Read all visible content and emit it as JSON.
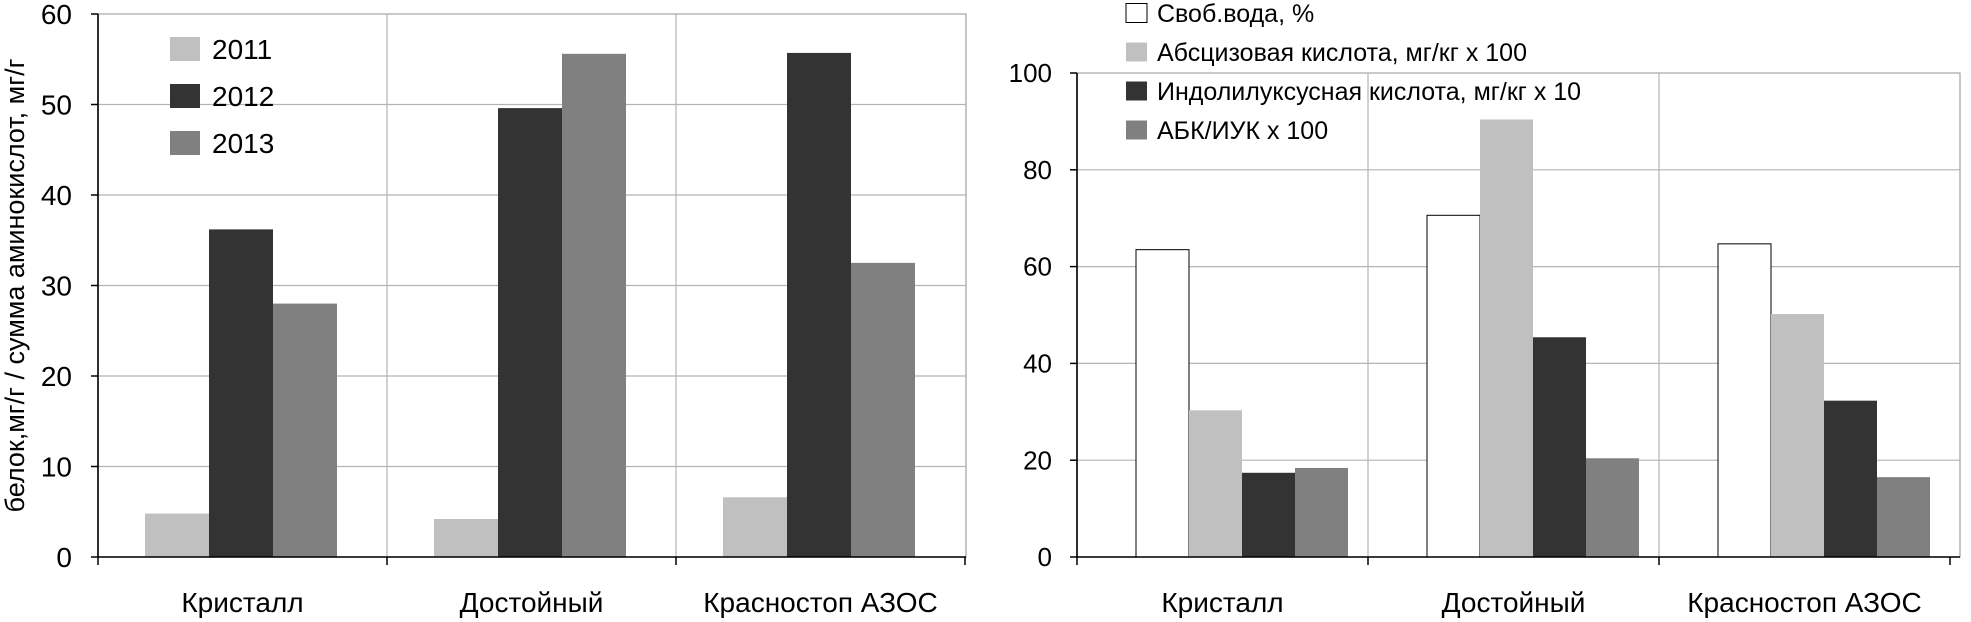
{
  "chart_data": [
    {
      "type": "bar",
      "title": "",
      "xlabel": "",
      "ylabel": "белок,мг/г / сумма аминокислот, мг/г",
      "ylim": [
        0,
        60
      ],
      "yticks": [
        0,
        10,
        20,
        30,
        40,
        50,
        60
      ],
      "grid": true,
      "legend": "top-left",
      "categories": [
        "Кристалл",
        "Достойный",
        "Красностоп АЗОС"
      ],
      "series": [
        {
          "name": "2011",
          "color": "#c0c0c0",
          "values": [
            4.8,
            4.2,
            6.6
          ]
        },
        {
          "name": "2012",
          "color": "#333333",
          "values": [
            36.2,
            49.6,
            55.7
          ]
        },
        {
          "name": "2013",
          "color": "#808080",
          "values": [
            28.0,
            55.6,
            32.5
          ]
        }
      ]
    },
    {
      "type": "bar",
      "title": "",
      "xlabel": "",
      "ylabel": "",
      "ylim": [
        0,
        100
      ],
      "yticks": [
        0,
        20,
        40,
        60,
        80,
        100
      ],
      "grid": true,
      "legend": "top",
      "categories": [
        "Кристалл",
        "Достойный",
        "Красностоп АЗОС"
      ],
      "series": [
        {
          "name": "Своб.вода, %",
          "color": "#ffffff",
          "values": [
            63.5,
            70.6,
            64.7
          ]
        },
        {
          "name": "Абсцизовая кислота, мг/кг х 100",
          "color": "#c0c0c0",
          "values": [
            30.3,
            90.4,
            50.2
          ]
        },
        {
          "name": "Индолилуксусная кислота, мг/кг х 10",
          "color": "#333333",
          "values": [
            17.4,
            45.4,
            32.3
          ]
        },
        {
          "name": "АБК/ИУК х 100",
          "color": "#808080",
          "values": [
            18.4,
            20.4,
            16.5
          ]
        }
      ]
    }
  ]
}
